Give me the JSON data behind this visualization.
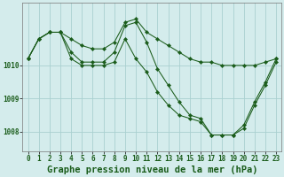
{
  "background_color": "#d4ecec",
  "grid_color": "#aad0d0",
  "line_color": "#1a5c1a",
  "marker_color": "#1a5c1a",
  "title": "Graphe pression niveau de la mer (hPa)",
  "title_fontsize": 7.5,
  "tick_fontsize": 5.5,
  "x_ticks": [
    0,
    1,
    2,
    3,
    4,
    5,
    6,
    7,
    8,
    9,
    10,
    11,
    12,
    13,
    14,
    15,
    16,
    17,
    18,
    19,
    20,
    21,
    22,
    23
  ],
  "ylim": [
    1007.4,
    1011.9
  ],
  "yticks": [
    1008,
    1009,
    1010
  ],
  "series": [
    [
      1010.2,
      1010.8,
      1011.0,
      1011.0,
      1010.8,
      1010.6,
      1010.5,
      1010.5,
      1010.7,
      1011.3,
      1011.4,
      1011.0,
      1010.8,
      1010.6,
      1010.4,
      1010.2,
      1010.1,
      1010.1,
      1010.0,
      1010.0,
      1010.0,
      1010.0,
      1010.1,
      1010.2
    ],
    [
      1010.2,
      1010.8,
      1011.0,
      1011.0,
      1010.4,
      1010.1,
      1010.1,
      1010.1,
      1010.4,
      1011.2,
      1011.3,
      1010.7,
      1009.9,
      1009.4,
      1008.9,
      1008.5,
      1008.4,
      1007.9,
      1007.9,
      1007.9,
      1008.2,
      1008.9,
      1009.5,
      1010.2
    ],
    [
      1010.2,
      1010.8,
      1011.0,
      1011.0,
      1010.2,
      1010.0,
      1010.0,
      1010.0,
      1010.1,
      1010.8,
      1010.2,
      1009.8,
      1009.2,
      1008.8,
      1008.5,
      1008.4,
      1008.3,
      1007.9,
      1007.9,
      1007.9,
      1008.1,
      1008.8,
      1009.4,
      1010.1
    ]
  ]
}
